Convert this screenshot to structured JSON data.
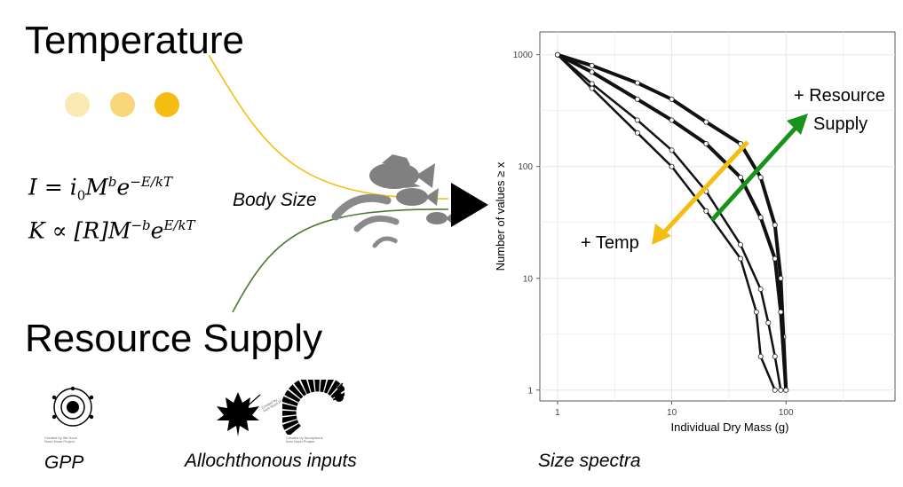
{
  "heading_temperature": "Temperature",
  "heading_resource_supply": "Resource Supply",
  "body_size_label": "Body Size",
  "gpp_label": "GPP",
  "allochthonous_label": "Allochthonous inputs",
  "size_spectra_label": "Size spectra",
  "icon_credit_gpp": [
    "Created by the Noun",
    "Noun Noun Project"
  ],
  "icon_credit_leaf": [
    "Created by ...",
    "from Noun Project"
  ],
  "icon_credit_larva": [
    "Created by Anonymous",
    "from Noun Project"
  ],
  "equation_I": {
    "lhs": "I",
    "rhs": "i",
    "sub": "0",
    "M": "M",
    "exp_b": "b",
    "e": "e",
    "exp_E": "−E/kT"
  },
  "equation_K": {
    "lhs": "K",
    "rel": "∝",
    "R": "[R]",
    "M": "M",
    "exp_b": "−b",
    "e": "e",
    "exp_E": "E/kT"
  },
  "colors": {
    "temperature": "#f5bd12",
    "temperature_light": "#fbe9b3",
    "temperature_mid": "#f9d778",
    "resource": "#4c7a32",
    "arrow_green": "#199219",
    "arrow_yellow": "#f5bd12",
    "fish": "#808080"
  },
  "chart_data": {
    "type": "line",
    "xlabel": "Individual Dry Mass (g)",
    "ylabel": "Number of values ≥ x",
    "x_scale": "log",
    "y_scale": "log",
    "xlim": [
      0.7,
      900
    ],
    "ylim": [
      0.8,
      1600
    ],
    "x_ticks": [
      1,
      10,
      100
    ],
    "x_tick_labels": [
      "1",
      "10",
      "100"
    ],
    "y_ticks": [
      1,
      10,
      100,
      1000
    ],
    "y_tick_labels": [
      "1",
      "10",
      "100",
      "1000"
    ],
    "grid": true,
    "series": [
      {
        "values": [
          [
            1,
            1000
          ],
          [
            2,
            800
          ],
          [
            5,
            560
          ],
          [
            10,
            400
          ],
          [
            20,
            250
          ],
          [
            40,
            160
          ],
          [
            60,
            80
          ],
          [
            80,
            30
          ],
          [
            90,
            10
          ],
          [
            95,
            3
          ],
          [
            100,
            1
          ]
        ]
      },
      {
        "values": [
          [
            1,
            1000
          ],
          [
            2,
            700
          ],
          [
            5,
            400
          ],
          [
            10,
            260
          ],
          [
            20,
            160
          ],
          [
            40,
            80
          ],
          [
            60,
            35
          ],
          [
            80,
            15
          ],
          [
            90,
            5
          ],
          [
            100,
            1
          ]
        ]
      },
      {
        "values": [
          [
            1,
            1000
          ],
          [
            2,
            550
          ],
          [
            5,
            260
          ],
          [
            10,
            140
          ],
          [
            20,
            60
          ],
          [
            40,
            20
          ],
          [
            60,
            8
          ],
          [
            70,
            4
          ],
          [
            80,
            2
          ],
          [
            90,
            1
          ]
        ]
      },
      {
        "values": [
          [
            1,
            1000
          ],
          [
            2,
            500
          ],
          [
            5,
            200
          ],
          [
            10,
            100
          ],
          [
            20,
            40
          ],
          [
            40,
            15
          ],
          [
            55,
            5
          ],
          [
            60,
            2
          ],
          [
            80,
            1
          ]
        ]
      }
    ],
    "annotations": {
      "temp": "+ Temp",
      "resource_line1": "+ Resource",
      "resource_line2": "Supply"
    }
  }
}
